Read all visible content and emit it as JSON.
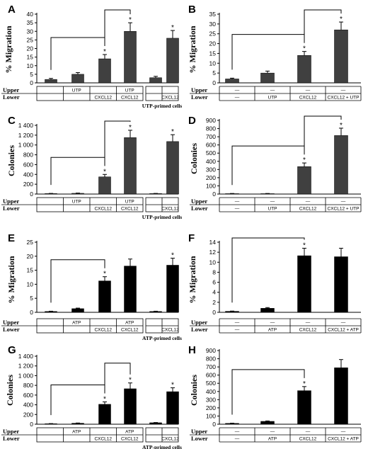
{
  "chart_data": [
    {
      "panel": "A",
      "type": "bar",
      "ylabel": "% Migration",
      "ylim": [
        0,
        40
      ],
      "yticks": [
        0,
        5,
        10,
        15,
        20,
        25,
        30,
        35,
        40
      ],
      "bar_color": "#404040",
      "values": [
        2,
        5,
        14,
        30,
        3,
        26
      ],
      "errors": [
        0.6,
        1.0,
        2.5,
        5.0,
        0.8,
        4.5
      ],
      "significant": [
        false,
        false,
        true,
        true,
        false,
        true
      ],
      "brackets": [
        [
          0,
          2
        ],
        [
          2,
          3
        ]
      ],
      "upper": [
        "",
        "UTP",
        "",
        "UTP",
        "",
        ""
      ],
      "lower": [
        "",
        "",
        "CXCL12",
        "CXCL12",
        "",
        "CXCL12"
      ],
      "primed_label": "UTP-primed cells"
    },
    {
      "panel": "B",
      "type": "bar",
      "ylabel": "% Migration",
      "ylim": [
        0,
        35
      ],
      "yticks": [
        0,
        5,
        10,
        15,
        20,
        25,
        30,
        35
      ],
      "bar_color": "#404040",
      "values": [
        2,
        5,
        14,
        27
      ],
      "errors": [
        0.4,
        1.0,
        2.0,
        4.0
      ],
      "significant": [
        false,
        false,
        true,
        true
      ],
      "brackets": [
        [
          0,
          2
        ],
        [
          2,
          3
        ]
      ],
      "upper": [
        "—",
        "—",
        "—",
        "—"
      ],
      "lower": [
        "—",
        "UTP",
        "CXCL12",
        "CXCL12 + UTP"
      ]
    },
    {
      "panel": "C",
      "type": "bar",
      "ylabel": "Colonies",
      "ylim": [
        0,
        1400
      ],
      "yticks": [
        0,
        200,
        400,
        600,
        800,
        1000,
        1200,
        1400
      ],
      "bar_color": "#404040",
      "values": [
        10,
        15,
        350,
        1150,
        10,
        1070
      ],
      "errors": [
        3,
        5,
        50,
        150,
        3,
        140
      ],
      "significant": [
        false,
        false,
        true,
        true,
        false,
        true
      ],
      "brackets": [
        [
          0,
          2
        ],
        [
          2,
          3
        ]
      ],
      "upper": [
        "",
        "UTP",
        "",
        "UTP",
        "",
        ""
      ],
      "lower": [
        "",
        "",
        "CXCL12",
        "CXCL12",
        "",
        "CXCL12"
      ],
      "primed_label": "UTP-primed cells"
    },
    {
      "panel": "D",
      "type": "bar",
      "ylabel": "Colonies",
      "ylim": [
        0,
        900
      ],
      "yticks": [
        0,
        100,
        200,
        300,
        400,
        500,
        600,
        700,
        800,
        900
      ],
      "bar_color": "#404040",
      "values": [
        5,
        5,
        335,
        715
      ],
      "errors": [
        2,
        2,
        45,
        90
      ],
      "significant": [
        false,
        false,
        true,
        true
      ],
      "brackets": [
        [
          0,
          2
        ],
        [
          2,
          3
        ]
      ],
      "upper": [
        "—",
        "—",
        "—",
        "—"
      ],
      "lower": [
        "—",
        "UTP",
        "CXCL12",
        "CXCL12 + UTP"
      ]
    },
    {
      "panel": "E",
      "type": "bar",
      "ylabel": "% Migration",
      "ylim": [
        0,
        25
      ],
      "yticks": [
        0,
        5,
        10,
        15,
        20,
        25
      ],
      "bar_color": "#000000",
      "values": [
        0.3,
        1.3,
        11.2,
        16.5,
        0.3,
        16.8
      ],
      "errors": [
        0.1,
        0.2,
        1.5,
        2.5,
        0.1,
        2.5
      ],
      "significant": [
        false,
        false,
        true,
        false,
        false,
        true
      ],
      "brackets": [
        [
          0,
          2
        ]
      ],
      "upper": [
        "",
        "ATP",
        "",
        "ATP",
        "",
        ""
      ],
      "lower": [
        "",
        "",
        "CXCL12",
        "CXCL12",
        "",
        "CXCL12"
      ],
      "primed_label": "ATP-primed cells"
    },
    {
      "panel": "F",
      "type": "bar",
      "ylabel": "% Migration",
      "ylim": [
        0,
        14
      ],
      "yticks": [
        0,
        2,
        4,
        6,
        8,
        10,
        12,
        14
      ],
      "bar_color": "#000000",
      "values": [
        0.2,
        0.8,
        11.3,
        11.1
      ],
      "errors": [
        0.05,
        0.15,
        1.5,
        1.7
      ],
      "significant": [
        false,
        false,
        true,
        false
      ],
      "brackets": [
        [
          0,
          2
        ]
      ],
      "upper": [
        "—",
        "—",
        "—",
        "—"
      ],
      "lower": [
        "—",
        "ATP",
        "CXCL12",
        "CXCL12 + ATP"
      ]
    },
    {
      "panel": "G",
      "type": "bar",
      "ylabel": "Colonies",
      "ylim": [
        0,
        1400
      ],
      "yticks": [
        0,
        200,
        400,
        600,
        800,
        1000,
        1200,
        1400
      ],
      "bar_color": "#000000",
      "values": [
        10,
        20,
        410,
        730,
        30,
        670
      ],
      "errors": [
        3,
        5,
        50,
        120,
        5,
        80
      ],
      "significant": [
        false,
        false,
        true,
        true,
        false,
        true
      ],
      "brackets": [
        [
          0,
          2
        ],
        [
          2,
          3
        ]
      ],
      "upper": [
        "",
        "ATP",
        "",
        "ATP",
        "",
        ""
      ],
      "lower": [
        "",
        "",
        "CXCL12",
        "CXCL12",
        "",
        "CXCL12"
      ],
      "primed_label": "ATP-primed cells"
    },
    {
      "panel": "H",
      "type": "bar",
      "ylabel": "Colonies",
      "ylim": [
        0,
        900
      ],
      "yticks": [
        0,
        100,
        200,
        300,
        400,
        500,
        600,
        700,
        800,
        900
      ],
      "bar_color": "#000000",
      "values": [
        10,
        35,
        410,
        690
      ],
      "errors": [
        3,
        5,
        50,
        100
      ],
      "significant": [
        false,
        false,
        true,
        false
      ],
      "brackets": [
        [
          0,
          2
        ]
      ],
      "upper": [
        "—",
        "—",
        "—",
        "—"
      ],
      "lower": [
        "—",
        "ATP",
        "CXCL12",
        "CXCL12 + ATP"
      ]
    }
  ],
  "row_labels": {
    "upper": "Upper",
    "lower": "Lower"
  },
  "significance_mark": "*"
}
